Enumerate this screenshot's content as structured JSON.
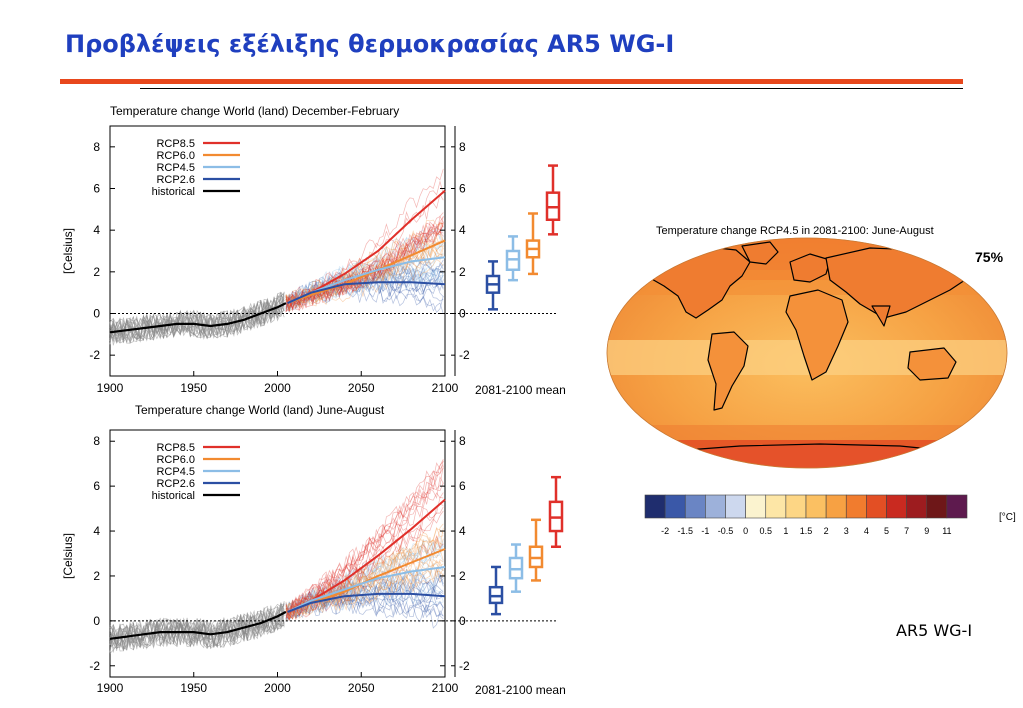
{
  "slide": {
    "title": "Προβλέψεις εξέλιξης θερμοκρασίας AR5 WG-I",
    "credit": "AR5 WG-I"
  },
  "colors": {
    "title": "#1f3fbf",
    "rule": "#e8471c",
    "rcp85": "#e0302a",
    "rcp60": "#f28a30",
    "rcp45": "#8cbde6",
    "rcp26": "#2b4fa3",
    "historical": "#000000"
  },
  "chart_data": [
    {
      "type": "line",
      "title": "Temperature change World (land) December-February",
      "ylabel": "[Celsius]",
      "xlim": [
        1900,
        2100
      ],
      "ylim": [
        -3,
        9
      ],
      "xticks": [
        1900,
        1950,
        2000,
        2050,
        2100
      ],
      "yticks": [
        -2,
        0,
        2,
        4,
        6,
        8
      ],
      "legend_position": "top-left",
      "series": [
        {
          "name": "RCP8.5",
          "color": "#e0302a",
          "x": [
            2006,
            2020,
            2040,
            2060,
            2080,
            2100
          ],
          "values": [
            0.5,
            1.0,
            1.9,
            3.0,
            4.5,
            5.9
          ]
        },
        {
          "name": "RCP6.0",
          "color": "#f28a30",
          "x": [
            2006,
            2020,
            2040,
            2060,
            2080,
            2100
          ],
          "values": [
            0.5,
            0.9,
            1.4,
            2.1,
            2.8,
            3.5
          ]
        },
        {
          "name": "RCP4.5",
          "color": "#8cbde6",
          "x": [
            2006,
            2020,
            2040,
            2060,
            2080,
            2100
          ],
          "values": [
            0.5,
            1.0,
            1.6,
            2.1,
            2.5,
            2.7
          ]
        },
        {
          "name": "RCP2.6",
          "color": "#2b4fa3",
          "x": [
            2006,
            2020,
            2040,
            2060,
            2080,
            2100
          ],
          "values": [
            0.5,
            1.0,
            1.4,
            1.5,
            1.5,
            1.4
          ]
        },
        {
          "name": "historical",
          "color": "#000000",
          "x": [
            1900,
            1910,
            1920,
            1930,
            1940,
            1950,
            1960,
            1970,
            1980,
            1990,
            2000,
            2005
          ],
          "values": [
            -0.9,
            -0.8,
            -0.7,
            -0.6,
            -0.5,
            -0.5,
            -0.6,
            -0.5,
            -0.3,
            0.0,
            0.3,
            0.5
          ]
        }
      ],
      "side_axis": {
        "label": "2081-2100 mean",
        "yticks": [
          -2,
          0,
          2,
          4,
          6,
          8
        ]
      },
      "boxes": [
        {
          "name": "RCP2.6",
          "color": "#2b4fa3",
          "min": 0.2,
          "q1": 1.0,
          "median": 1.4,
          "q3": 1.8,
          "max": 2.5
        },
        {
          "name": "RCP4.5",
          "color": "#8cbde6",
          "min": 1.6,
          "q1": 2.1,
          "median": 2.6,
          "q3": 3.0,
          "max": 3.7
        },
        {
          "name": "RCP6.0",
          "color": "#f28a30",
          "min": 1.9,
          "q1": 2.7,
          "median": 3.1,
          "q3": 3.5,
          "max": 4.8
        },
        {
          "name": "RCP8.5",
          "color": "#e0302a",
          "min": 3.8,
          "q1": 4.5,
          "median": 5.1,
          "q3": 5.8,
          "max": 7.1
        }
      ]
    },
    {
      "type": "line",
      "title": "Temperature change World (land) June-August",
      "ylabel": "[Celsius]",
      "xlim": [
        1900,
        2100
      ],
      "ylim": [
        -2.5,
        8.5
      ],
      "xticks": [
        1900,
        1950,
        2000,
        2050,
        2100
      ],
      "yticks": [
        -2,
        0,
        2,
        4,
        6,
        8
      ],
      "legend_position": "top-left",
      "series": [
        {
          "name": "RCP8.5",
          "color": "#e0302a",
          "x": [
            2006,
            2020,
            2040,
            2060,
            2080,
            2100
          ],
          "values": [
            0.4,
            0.9,
            1.8,
            2.9,
            4.1,
            5.4
          ]
        },
        {
          "name": "RCP6.0",
          "color": "#f28a30",
          "x": [
            2006,
            2020,
            2040,
            2060,
            2080,
            2100
          ],
          "values": [
            0.4,
            0.8,
            1.3,
            2.0,
            2.6,
            3.2
          ]
        },
        {
          "name": "RCP4.5",
          "color": "#8cbde6",
          "x": [
            2006,
            2020,
            2040,
            2060,
            2080,
            2100
          ],
          "values": [
            0.4,
            0.9,
            1.4,
            1.9,
            2.2,
            2.4
          ]
        },
        {
          "name": "RCP2.6",
          "color": "#2b4fa3",
          "x": [
            2006,
            2020,
            2040,
            2060,
            2080,
            2100
          ],
          "values": [
            0.4,
            0.8,
            1.1,
            1.2,
            1.2,
            1.1
          ]
        },
        {
          "name": "historical",
          "color": "#000000",
          "x": [
            1900,
            1910,
            1920,
            1930,
            1940,
            1950,
            1960,
            1970,
            1980,
            1990,
            2000,
            2005
          ],
          "values": [
            -0.8,
            -0.7,
            -0.6,
            -0.5,
            -0.5,
            -0.5,
            -0.6,
            -0.5,
            -0.3,
            -0.1,
            0.2,
            0.4
          ]
        }
      ],
      "side_axis": {
        "label": "2081-2100 mean",
        "yticks": [
          -2,
          0,
          2,
          4,
          6,
          8
        ]
      },
      "boxes": [
        {
          "name": "RCP2.6",
          "color": "#2b4fa3",
          "min": 0.3,
          "q1": 0.8,
          "median": 1.1,
          "q3": 1.5,
          "max": 2.4
        },
        {
          "name": "RCP4.5",
          "color": "#8cbde6",
          "min": 1.3,
          "q1": 1.9,
          "median": 2.3,
          "q3": 2.8,
          "max": 3.4
        },
        {
          "name": "RCP6.0",
          "color": "#f28a30",
          "min": 1.8,
          "q1": 2.4,
          "median": 2.8,
          "q3": 3.3,
          "max": 4.5
        },
        {
          "name": "RCP8.5",
          "color": "#e0302a",
          "min": 3.3,
          "q1": 4.0,
          "median": 4.6,
          "q3": 5.3,
          "max": 6.4
        }
      ]
    },
    {
      "type": "heatmap",
      "title": "Temperature change RCP4.5 in 2081-2100: June-August",
      "annotation": "75%",
      "colorbar": {
        "unit": "[°C]",
        "labels": [
          "-2",
          "-1.5",
          "-1",
          "-0.5",
          "0",
          "0.5",
          "1",
          "1.5",
          "2",
          "3",
          "4",
          "5",
          "7",
          "9",
          "11"
        ],
        "colors": [
          "#1f2d6e",
          "#3a58a8",
          "#6a85c4",
          "#9db1da",
          "#cdd8ee",
          "#fbf3cf",
          "#fde6a6",
          "#fdd685",
          "#fbc062",
          "#f7a143",
          "#f17c2e",
          "#e34f24",
          "#c92a20",
          "#9d1c1f",
          "#6e1718",
          "#5e1a4e"
        ]
      }
    }
  ]
}
